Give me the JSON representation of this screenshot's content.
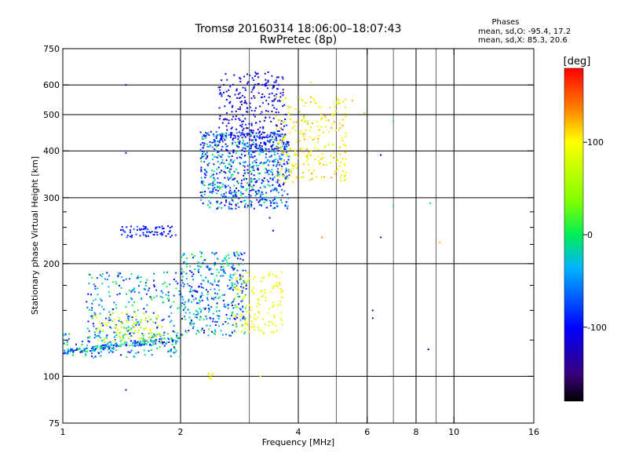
{
  "chart_data": {
    "type": "scatter",
    "title_lines": [
      "Tromsø 20160314 18:06:00–18:07:43",
      "RwPretec (8p)"
    ],
    "xlabel": "Frequency [MHz]",
    "ylabel": "Stationary phase Virtual Height [km]",
    "x_scale": "log",
    "y_scale": "log",
    "xlim": [
      1,
      16
    ],
    "ylim": [
      75,
      750
    ],
    "x_ticks": [
      1,
      2,
      4,
      6,
      8,
      10,
      16
    ],
    "x_tick_labels": [
      "1",
      "2",
      "4",
      "6",
      "8",
      "10",
      "16"
    ],
    "x_minor_ticks": [
      3,
      5,
      7,
      9
    ],
    "y_ticks": [
      75,
      100,
      200,
      300,
      400,
      500,
      600,
      750
    ],
    "y_tick_labels": [
      "75",
      "100",
      "200",
      "300",
      "400",
      "500",
      "600",
      "750"
    ],
    "y_minor_ticks": [
      125,
      150,
      175,
      225,
      250,
      275
    ],
    "grid": true,
    "phase_stats": {
      "title": "Phases",
      "line_o": "mean, sd,O: -95.4, 17.2",
      "line_x": "mean, sd,X: 85.3, 20.6"
    },
    "colorbar": {
      "label": "[deg]",
      "range": [
        -180,
        180
      ],
      "ticks": [
        -100,
        0,
        100
      ],
      "tick_labels": [
        "-100",
        "0",
        "100"
      ],
      "colormap": "rainbow-with-black-bottom"
    },
    "clusters": [
      {
        "name": "",
        "n": 260,
        "x": [
          1.0,
          2.0
        ],
        "y": [
          112,
          130
        ],
        "phase": [
          -110,
          10
        ],
        "trace_from": [
          1.0,
          116
        ],
        "trace_to": [
          2.0,
          126
        ]
      },
      {
        "name": "",
        "n": 260,
        "x": [
          1.15,
          2.0
        ],
        "y": [
          120,
          190
        ],
        "phase": [
          -110,
          20
        ]
      },
      {
        "name": "",
        "n": 380,
        "x": [
          2.0,
          2.95
        ],
        "y": [
          128,
          215
        ],
        "phase": [
          -115,
          15
        ]
      },
      {
        "name": "",
        "n": 90,
        "x": [
          1.2,
          1.8
        ],
        "y": [
          122,
          148
        ],
        "phase": [
          40,
          110
        ]
      },
      {
        "name": "",
        "n": 140,
        "x": [
          2.75,
          3.65
        ],
        "y": [
          130,
          190
        ],
        "phase": [
          80,
          110
        ]
      },
      {
        "name": "",
        "n": 70,
        "x": [
          1.4,
          1.95
        ],
        "y": [
          235,
          252
        ],
        "phase": [
          -110,
          -70
        ]
      },
      {
        "name": "",
        "n": 700,
        "x": [
          2.25,
          3.8
        ],
        "y": [
          280,
          450
        ],
        "phase": [
          -130,
          0
        ]
      },
      {
        "name": "",
        "n": 320,
        "x": [
          2.5,
          3.75
        ],
        "y": [
          400,
          650
        ],
        "phase": [
          -140,
          -80
        ]
      },
      {
        "name": "",
        "n": 240,
        "x": [
          3.5,
          5.3
        ],
        "y": [
          330,
          560
        ],
        "phase": [
          70,
          130
        ]
      },
      {
        "name": "",
        "n": 8,
        "x": [
          2.35,
          2.45
        ],
        "y": [
          98,
          102
        ],
        "phase": [
          90,
          110
        ]
      }
    ],
    "outliers": [
      {
        "x": 1.45,
        "y": 600,
        "phase": -110
      },
      {
        "x": 1.45,
        "y": 395,
        "phase": -110
      },
      {
        "x": 1.45,
        "y": 92,
        "phase": -110
      },
      {
        "x": 6.5,
        "y": 390,
        "phase": -100
      },
      {
        "x": 7.0,
        "y": 480,
        "phase": 0
      },
      {
        "x": 7.0,
        "y": 285,
        "phase": 0
      },
      {
        "x": 8.7,
        "y": 290,
        "phase": 0
      },
      {
        "x": 6.5,
        "y": 235,
        "phase": -130
      },
      {
        "x": 9.2,
        "y": 228,
        "phase": 120
      },
      {
        "x": 6.2,
        "y": 150,
        "phase": -140
      },
      {
        "x": 6.2,
        "y": 143,
        "phase": -150
      },
      {
        "x": 8.6,
        "y": 118,
        "phase": -110
      },
      {
        "x": 4.6,
        "y": 235,
        "phase": 140
      },
      {
        "x": 5.9,
        "y": 505,
        "phase": 120
      },
      {
        "x": 5.5,
        "y": 545,
        "phase": 120
      },
      {
        "x": 4.3,
        "y": 610,
        "phase": 110
      },
      {
        "x": 3.2,
        "y": 100,
        "phase": 100
      },
      {
        "x": 3.38,
        "y": 265,
        "phase": -100
      },
      {
        "x": 3.45,
        "y": 245,
        "phase": -100
      }
    ]
  }
}
